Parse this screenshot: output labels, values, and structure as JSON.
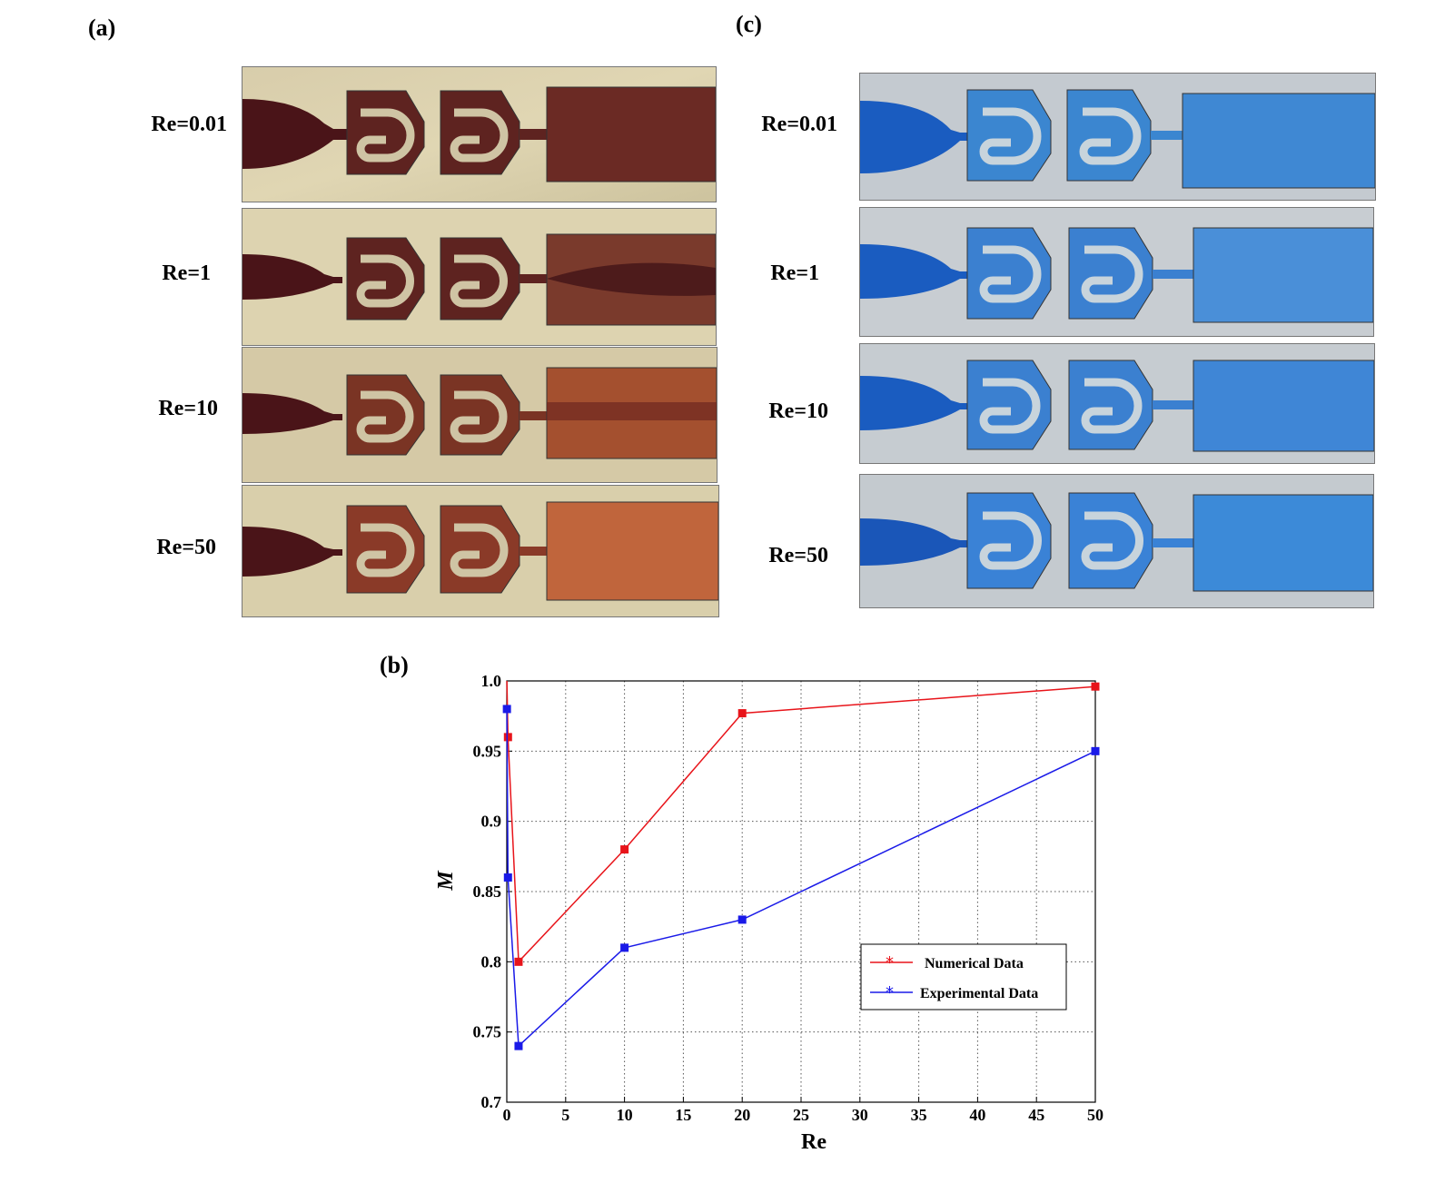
{
  "panels": {
    "a": "(a)",
    "b": "(b)",
    "c": "(c)"
  },
  "photos_a": {
    "labels": [
      "Re=0.01",
      "Re=1",
      "Re=10",
      "Re=50"
    ],
    "channel_color": "#5e1f1b",
    "background_color": "#d9cfa8"
  },
  "photos_c": {
    "labels": [
      "Re=0.01",
      "Re=1",
      "Re=10",
      "Re=50"
    ],
    "channel_color": "#1f6fd0",
    "background_color": "#c8ccd0"
  },
  "chart_data": {
    "type": "line",
    "title": "",
    "xlabel": "Re",
    "ylabel": "M",
    "xlim": [
      0,
      50
    ],
    "ylim": [
      0.7,
      1.0
    ],
    "xticks": [
      "0",
      "5",
      "10",
      "15",
      "20",
      "25",
      "30",
      "35",
      "40",
      "45",
      "50"
    ],
    "yticks": [
      "0.7",
      "0.75",
      "0.8",
      "0.85",
      "0.9",
      "0.95",
      "1.0"
    ],
    "grid": true,
    "legend_position": "lower-right",
    "series": [
      {
        "name": "Numerical Data",
        "color": "#e8141a",
        "x": [
          0.01,
          0.1,
          1,
          10,
          20,
          50
        ],
        "y": [
          1.0,
          0.96,
          0.8,
          0.88,
          0.977,
          0.996
        ]
      },
      {
        "name": "Experimental Data",
        "color": "#1a1ae8",
        "x": [
          0.01,
          0.1,
          1,
          10,
          20,
          50
        ],
        "y": [
          0.98,
          0.86,
          0.74,
          0.81,
          0.83,
          0.95
        ]
      }
    ]
  }
}
